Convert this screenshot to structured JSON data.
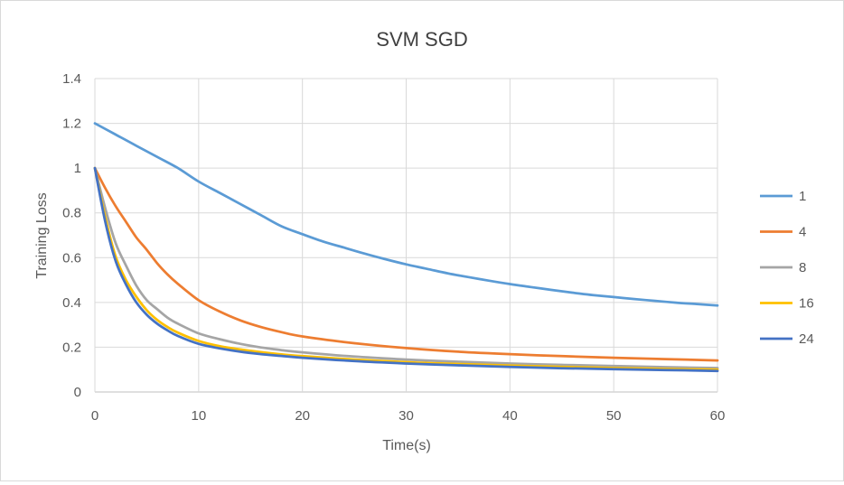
{
  "chart_data": {
    "type": "line",
    "title": "SVM SGD",
    "xlabel": "Time(s)",
    "ylabel": "Training Loss",
    "xlim": [
      0,
      60
    ],
    "ylim": [
      0,
      1.4
    ],
    "xticks": [
      0,
      10,
      20,
      30,
      40,
      50,
      60
    ],
    "yticks": [
      0,
      0.2,
      0.4,
      0.6,
      0.8,
      1,
      1.2,
      1.4
    ],
    "xtick_labels": [
      "0",
      "10",
      "20",
      "30",
      "40",
      "50",
      "60"
    ],
    "ytick_labels": [
      "0",
      "0.2",
      "0.4",
      "0.6",
      "0.8",
      "1",
      "1.2",
      "1.4"
    ],
    "grid": true,
    "legend_position": "right",
    "series": [
      {
        "name": "1",
        "color": "#5B9BD5",
        "x": [
          0,
          2,
          4,
          6,
          8,
          10,
          12,
          14,
          16,
          18,
          20,
          22,
          24,
          26,
          28,
          30,
          32,
          34,
          36,
          38,
          40,
          42,
          44,
          46,
          48,
          50,
          52,
          54,
          56,
          58,
          60
        ],
        "y": [
          1.2,
          1.15,
          1.1,
          1.05,
          1.0,
          0.94,
          0.89,
          0.84,
          0.79,
          0.74,
          0.705,
          0.672,
          0.645,
          0.618,
          0.593,
          0.57,
          0.55,
          0.53,
          0.513,
          0.497,
          0.482,
          0.469,
          0.456,
          0.444,
          0.433,
          0.424,
          0.415,
          0.407,
          0.399,
          0.393,
          0.386
        ]
      },
      {
        "name": "4",
        "color": "#ED7D31",
        "x": [
          0,
          1,
          2,
          3,
          4,
          5,
          6,
          7,
          8,
          10,
          12,
          14,
          16,
          18,
          20,
          25,
          30,
          35,
          40,
          45,
          50,
          55,
          60
        ],
        "y": [
          1.0,
          0.91,
          0.83,
          0.76,
          0.69,
          0.635,
          0.575,
          0.525,
          0.483,
          0.41,
          0.36,
          0.32,
          0.29,
          0.267,
          0.248,
          0.218,
          0.196,
          0.18,
          0.169,
          0.16,
          0.153,
          0.147,
          0.141
        ]
      },
      {
        "name": "8",
        "color": "#A5A5A5",
        "x": [
          0,
          1,
          2,
          3,
          4,
          5,
          6,
          7,
          8,
          10,
          12,
          14,
          16,
          18,
          20,
          25,
          30,
          35,
          40,
          45,
          50,
          55,
          60
        ],
        "y": [
          1.0,
          0.82,
          0.665,
          0.565,
          0.475,
          0.41,
          0.37,
          0.332,
          0.305,
          0.262,
          0.236,
          0.215,
          0.199,
          0.187,
          0.177,
          0.158,
          0.145,
          0.135,
          0.127,
          0.121,
          0.116,
          0.111,
          0.107
        ]
      },
      {
        "name": "16",
        "color": "#FFC000",
        "x": [
          0,
          1,
          2,
          3,
          4,
          5,
          6,
          7,
          8,
          10,
          12,
          14,
          16,
          18,
          20,
          25,
          30,
          35,
          40,
          45,
          50,
          55,
          60
        ],
        "y": [
          1.0,
          0.78,
          0.605,
          0.5,
          0.425,
          0.365,
          0.322,
          0.29,
          0.265,
          0.228,
          0.205,
          0.19,
          0.178,
          0.168,
          0.16,
          0.145,
          0.133,
          0.125,
          0.118,
          0.112,
          0.107,
          0.103,
          0.1
        ]
      },
      {
        "name": "24",
        "color": "#4472C4",
        "x": [
          0,
          1,
          2,
          3,
          4,
          5,
          6,
          7,
          8,
          10,
          12,
          14,
          16,
          18,
          20,
          25,
          30,
          35,
          40,
          45,
          50,
          55,
          60
        ],
        "y": [
          1.0,
          0.76,
          0.585,
          0.48,
          0.4,
          0.345,
          0.305,
          0.275,
          0.25,
          0.215,
          0.195,
          0.18,
          0.169,
          0.161,
          0.153,
          0.138,
          0.127,
          0.119,
          0.112,
          0.106,
          0.102,
          0.098,
          0.094
        ]
      }
    ]
  },
  "colors": {
    "gridline": "#d9d9d9",
    "axis_line": "#bfbfbf",
    "text": "#595959"
  }
}
